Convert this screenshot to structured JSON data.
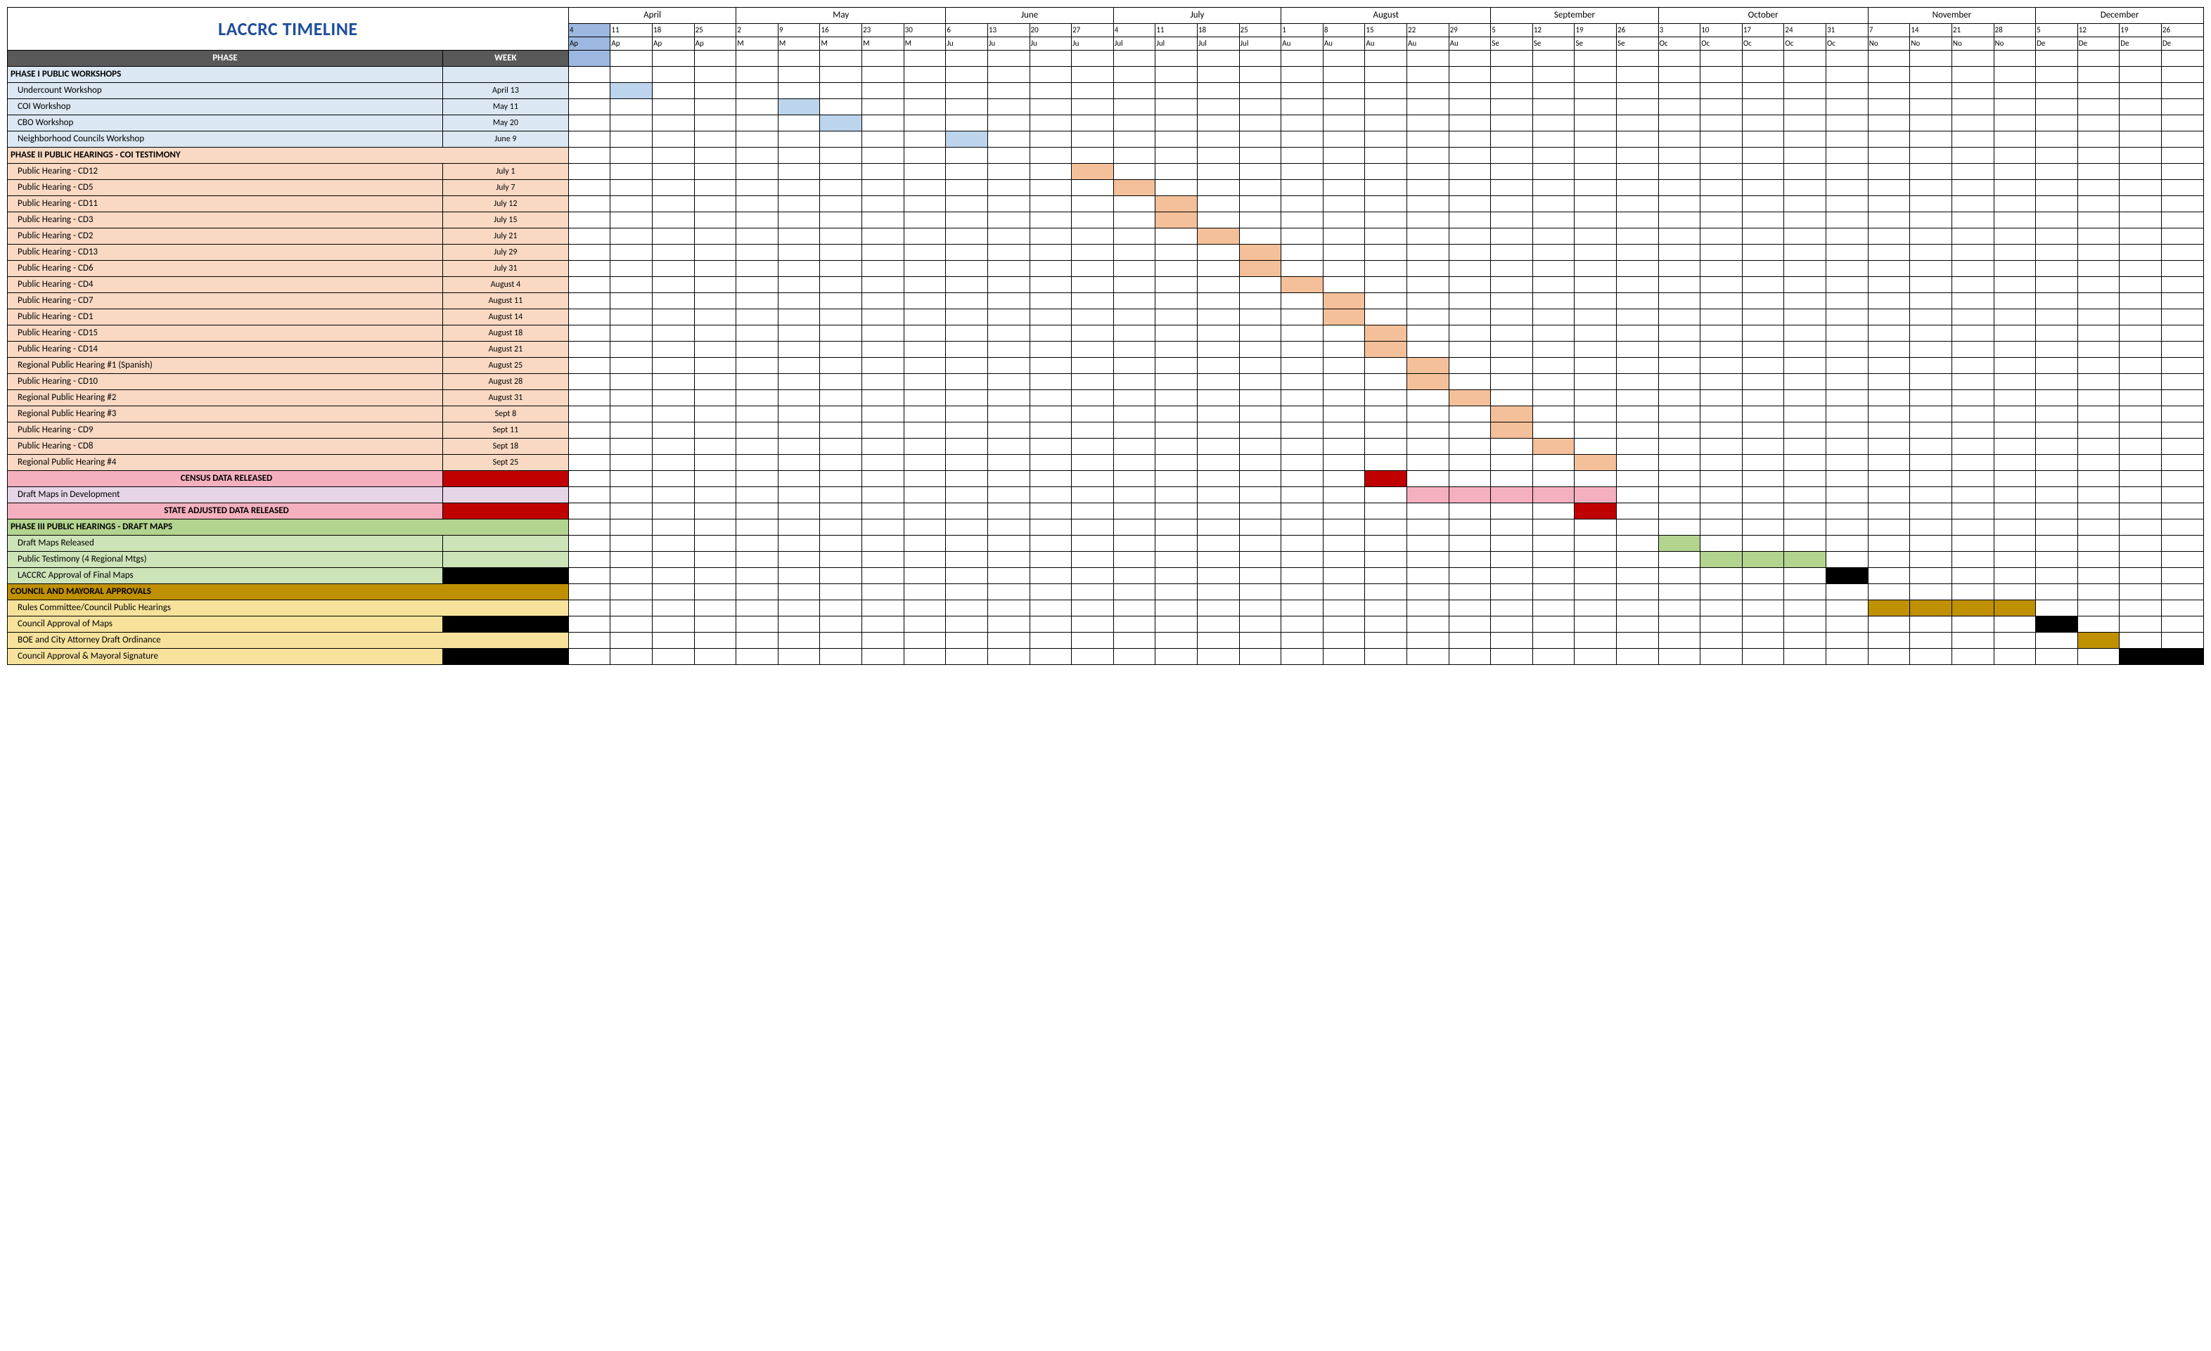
{
  "title": "LACCRC TIMELINE",
  "colors": {
    "title_text": "#1f4e9c",
    "phase_hdr_bg": "#595959",
    "phase_hdr_fg": "#ffffff",
    "grid": "#000000",
    "phase1_light": "#dbe8f4",
    "phase1_fill": "#bcd4ec",
    "phase2_light": "#f9d9c3",
    "phase2_fill": "#f4c09a",
    "census_label": "#f4b0be",
    "census_red": "#c00000",
    "draft_dev_bg": "#e6d5e6",
    "draft_dev_fill": "#f4b0be",
    "phase3_light": "#cde3b8",
    "phase3_fill": "#b3d48e",
    "black": "#000000",
    "council_hdr": "#bf9000",
    "council_light": "#f7e29c",
    "council_fill": "#bf9000",
    "current_week": "#9db8e0"
  },
  "months": [
    {
      "label": "April",
      "span": 4
    },
    {
      "label": "May",
      "span": 5
    },
    {
      "label": "June",
      "span": 4
    },
    {
      "label": "July",
      "span": 4
    },
    {
      "label": "August",
      "span": 5
    },
    {
      "label": "September",
      "span": 4
    },
    {
      "label": "October",
      "span": 5
    },
    {
      "label": "November",
      "span": 4
    },
    {
      "label": "December",
      "span": 4
    }
  ],
  "weeks": [
    {
      "d": "4",
      "m": "Ap",
      "hl": true
    },
    {
      "d": "11",
      "m": "Ap"
    },
    {
      "d": "18",
      "m": "Ap"
    },
    {
      "d": "25",
      "m": "Ap"
    },
    {
      "d": "2",
      "m": "M"
    },
    {
      "d": "9",
      "m": "M"
    },
    {
      "d": "16",
      "m": "M"
    },
    {
      "d": "23",
      "m": "M"
    },
    {
      "d": "30",
      "m": "M"
    },
    {
      "d": "6",
      "m": "Ju"
    },
    {
      "d": "13",
      "m": "Ju"
    },
    {
      "d": "20",
      "m": "Ju"
    },
    {
      "d": "27",
      "m": "Ju"
    },
    {
      "d": "4",
      "m": "Jul"
    },
    {
      "d": "11",
      "m": "Jul"
    },
    {
      "d": "18",
      "m": "Jul"
    },
    {
      "d": "25",
      "m": "Jul"
    },
    {
      "d": "1",
      "m": "Au"
    },
    {
      "d": "8",
      "m": "Au"
    },
    {
      "d": "15",
      "m": "Au"
    },
    {
      "d": "22",
      "m": "Au"
    },
    {
      "d": "29",
      "m": "Au"
    },
    {
      "d": "5",
      "m": "Se"
    },
    {
      "d": "12",
      "m": "Se"
    },
    {
      "d": "19",
      "m": "Se"
    },
    {
      "d": "26",
      "m": "Se"
    },
    {
      "d": "3",
      "m": "Oc"
    },
    {
      "d": "10",
      "m": "Oc"
    },
    {
      "d": "17",
      "m": "Oc"
    },
    {
      "d": "24",
      "m": "Oc"
    },
    {
      "d": "31",
      "m": "Oc"
    },
    {
      "d": "7",
      "m": "No"
    },
    {
      "d": "14",
      "m": "No"
    },
    {
      "d": "21",
      "m": "No"
    },
    {
      "d": "28",
      "m": "No"
    },
    {
      "d": "5",
      "m": "De"
    },
    {
      "d": "12",
      "m": "De"
    },
    {
      "d": "19",
      "m": "De"
    },
    {
      "d": "26",
      "m": "De"
    }
  ],
  "label_header": {
    "phase": "PHASE",
    "week": "WEEK"
  },
  "rows": [
    {
      "type": "section",
      "label": "PHASE I PUBLIC WORKSHOPS",
      "bg": "phase1_light",
      "date": "",
      "date_bg": "phase1_light"
    },
    {
      "type": "item",
      "label": "Undercount Workshop",
      "bg": "phase1_light",
      "date": "April 13",
      "fills": {
        "1": "phase1_fill"
      }
    },
    {
      "type": "item",
      "label": "COI Workshop",
      "bg": "phase1_light",
      "date": "May 11",
      "fills": {
        "5": "phase1_fill"
      }
    },
    {
      "type": "item",
      "label": "CBO Workshop",
      "bg": "phase1_light",
      "date": "May 20",
      "fills": {
        "6": "phase1_fill"
      }
    },
    {
      "type": "item",
      "label": "Neighborhood Councils Workshop",
      "bg": "phase1_light",
      "date": "June 9",
      "fills": {
        "9": "phase1_fill"
      }
    },
    {
      "type": "section",
      "label": "PHASE II PUBLIC HEARINGS - COI TESTIMONY",
      "bg": "phase2_light",
      "date": "",
      "date_bg": "phase2_light",
      "span_date": true
    },
    {
      "type": "item",
      "label": "Public Hearing - CD12",
      "bg": "phase2_light",
      "date": "July 1",
      "fills": {
        "12": "phase2_fill"
      }
    },
    {
      "type": "item",
      "label": "Public Hearing - CD5",
      "bg": "phase2_light",
      "date": "July 7",
      "fills": {
        "13": "phase2_fill"
      }
    },
    {
      "type": "item",
      "label": "Public Hearing - CD11",
      "bg": "phase2_light",
      "date": "July 12",
      "fills": {
        "14": "phase2_fill"
      }
    },
    {
      "type": "item",
      "label": "Public Hearing - CD3",
      "bg": "phase2_light",
      "date": "July 15",
      "fills": {
        "14": "phase2_fill"
      }
    },
    {
      "type": "item",
      "label": "Public Hearing - CD2",
      "bg": "phase2_light",
      "date": "July 21",
      "fills": {
        "15": "phase2_fill"
      }
    },
    {
      "type": "item",
      "label": "Public Hearing - CD13",
      "bg": "phase2_light",
      "date": "July 29",
      "fills": {
        "16": "phase2_fill"
      }
    },
    {
      "type": "item",
      "label": "Public Hearing - CD6",
      "bg": "phase2_light",
      "date": "July 31",
      "fills": {
        "16": "phase2_fill"
      }
    },
    {
      "type": "item",
      "label": "Public Hearing - CD4",
      "bg": "phase2_light",
      "date": "August 4",
      "fills": {
        "17": "phase2_fill"
      }
    },
    {
      "type": "item",
      "label": "Public Hearing - CD7",
      "bg": "phase2_light",
      "date": "August 11",
      "fills": {
        "18": "phase2_fill"
      }
    },
    {
      "type": "item",
      "label": "Public Hearing - CD1",
      "bg": "phase2_light",
      "date": "August 14",
      "fills": {
        "18": "phase2_fill"
      }
    },
    {
      "type": "item",
      "label": "Public Hearing - CD15",
      "bg": "phase2_light",
      "date": "August 18",
      "fills": {
        "19": "phase2_fill"
      }
    },
    {
      "type": "item",
      "label": "Public Hearing - CD14",
      "bg": "phase2_light",
      "date": "August 21",
      "fills": {
        "19": "phase2_fill"
      }
    },
    {
      "type": "item",
      "label": "Regional Public Hearing #1 (Spanish)",
      "bg": "phase2_light",
      "date": "August 25",
      "fills": {
        "20": "phase2_fill"
      }
    },
    {
      "type": "item",
      "label": "Public Hearing - CD10",
      "bg": "phase2_light",
      "date": "August 28",
      "fills": {
        "20": "phase2_fill"
      }
    },
    {
      "type": "item",
      "label": "Regional Public Hearing #2",
      "bg": "phase2_light",
      "date": "August 31",
      "fills": {
        "21": "phase2_fill"
      }
    },
    {
      "type": "item",
      "label": "Regional Public Hearing #3",
      "bg": "phase2_light",
      "date": "Sept 8",
      "fills": {
        "22": "phase2_fill"
      }
    },
    {
      "type": "item",
      "label": "Public Hearing - CD9",
      "bg": "phase2_light",
      "date": "Sept 11",
      "fills": {
        "22": "phase2_fill"
      }
    },
    {
      "type": "item",
      "label": "Public Hearing - CD8",
      "bg": "phase2_light",
      "date": "Sept 18",
      "fills": {
        "23": "phase2_fill"
      }
    },
    {
      "type": "item",
      "label": "Regional Public Hearing #4",
      "bg": "phase2_light",
      "date": "Sept 25",
      "fills": {
        "24": "phase2_fill"
      }
    },
    {
      "type": "center",
      "label": "CENSUS DATA RELEASED",
      "bg": "census_label",
      "date": "",
      "date_bg": "census_red",
      "bold": true,
      "fills": {
        "19": "census_red"
      }
    },
    {
      "type": "item",
      "label": "Draft Maps in Development",
      "bg": "draft_dev_bg",
      "date": "",
      "date_bg": "draft_dev_bg",
      "fills": {
        "20": "draft_dev_fill",
        "21": "draft_dev_fill",
        "22": "draft_dev_fill",
        "23": "draft_dev_fill",
        "24": "draft_dev_fill"
      }
    },
    {
      "type": "center",
      "label": "STATE ADJUSTED DATA RELEASED",
      "bg": "census_label",
      "date": "",
      "date_bg": "census_red",
      "bold": true,
      "fills": {
        "24": "census_red"
      }
    },
    {
      "type": "section",
      "label": "PHASE III PUBLIC HEARINGS - DRAFT MAPS",
      "bg": "phase3_fill",
      "date": "",
      "date_bg": "phase3_fill",
      "span_date": true
    },
    {
      "type": "item",
      "label": "Draft Maps Released",
      "bg": "phase3_light",
      "date": "",
      "date_bg": "phase3_light",
      "fills": {
        "26": "phase3_fill"
      }
    },
    {
      "type": "item",
      "label": "Public Testimony (4 Regional Mtgs)",
      "bg": "phase3_light",
      "date": "",
      "date_bg": "phase3_light",
      "fills": {
        "27": "phase3_fill",
        "28": "phase3_fill",
        "29": "phase3_fill"
      }
    },
    {
      "type": "item",
      "label": "LACCRC Approval of Final Maps",
      "bg": "phase3_light",
      "date": "",
      "date_bg": "black",
      "fills": {
        "30": "black"
      }
    },
    {
      "type": "section",
      "label": "COUNCIL AND MAYORAL APPROVALS",
      "bg": "council_hdr",
      "date": "",
      "date_bg": "council_hdr",
      "span_date": true,
      "fg": "#000"
    },
    {
      "type": "item",
      "label": "Rules Committee/Council Public Hearings",
      "bg": "council_light",
      "date": "",
      "date_bg": "council_light",
      "span_date": true,
      "fills": {
        "31": "council_fill",
        "32": "council_fill",
        "33": "council_fill",
        "34": "council_fill"
      }
    },
    {
      "type": "item",
      "label": "Council Approval of Maps",
      "bg": "council_light",
      "date": "",
      "date_bg": "black",
      "fills": {
        "35": "black"
      }
    },
    {
      "type": "item",
      "label": "BOE and City Attorney Draft Ordinance",
      "bg": "council_light",
      "date": "",
      "date_bg": "council_light",
      "span_date": true,
      "fills": {
        "36": "council_fill"
      }
    },
    {
      "type": "item",
      "label": "Council Approval & Mayoral Signature",
      "bg": "council_light",
      "date": "",
      "date_bg": "black",
      "fills": {
        "37": "black",
        "38": "black"
      }
    }
  ]
}
